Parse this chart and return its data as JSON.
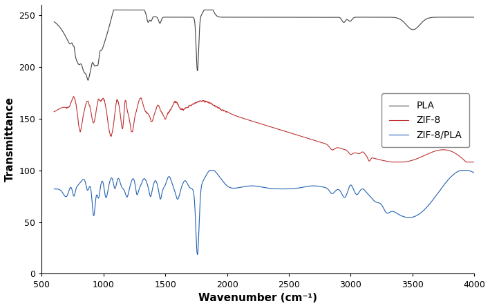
{
  "title": "",
  "xlabel": "Wavenumber (cm⁻¹)",
  "ylabel": "Transmittance",
  "xlim": [
    600,
    4000
  ],
  "ylim": [
    0,
    260
  ],
  "yticks": [
    0,
    50,
    100,
    150,
    200,
    250
  ],
  "xticks": [
    500,
    1000,
    1500,
    2000,
    2500,
    3000,
    3500,
    4000
  ],
  "legend_labels": [
    "PLA",
    "ZIF-8",
    "ZIF-8/PLA"
  ],
  "colors": [
    "#404040",
    "#c03030",
    "#2060b0"
  ],
  "figsize": [
    7.09,
    4.46
  ],
  "dpi": 100
}
